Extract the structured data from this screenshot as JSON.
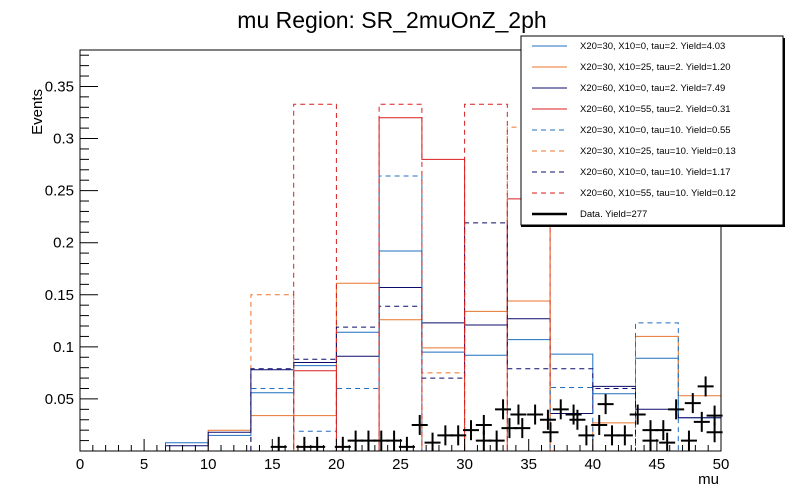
{
  "chart_data": {
    "type": "histogram",
    "title": "mu Region: SR_2muOnZ_2ph",
    "xlabel": "mu",
    "ylabel": "Events",
    "xlim": [
      0,
      50
    ],
    "ylim": [
      0,
      0.385
    ],
    "x_ticks": [
      0,
      5,
      10,
      15,
      20,
      25,
      30,
      35,
      40,
      45,
      50
    ],
    "y_ticks": [
      0.05,
      0.1,
      0.15,
      0.2,
      0.25,
      0.3,
      0.35
    ],
    "x_tick_labels": [
      "0",
      "5",
      "10",
      "15",
      "20",
      "25",
      "30",
      "35",
      "40",
      "45",
      "50"
    ],
    "y_tick_labels": [
      "0.05",
      "0.1",
      "0.15",
      "0.2",
      "0.25",
      "0.3",
      "0.35"
    ],
    "bin_edges": [
      0,
      3.333,
      6.667,
      10,
      13.333,
      16.667,
      20,
      23.333,
      26.667,
      30,
      33.333,
      36.667,
      40,
      43.333,
      46.667,
      50
    ],
    "series": [
      {
        "name": "X20=30, X10=0, tau=2. Yield=4.03",
        "color": "#1f6fbf",
        "style": "solid",
        "values": [
          0.0,
          0.0,
          0.008,
          0.015,
          0.056,
          0.082,
          0.114,
          0.192,
          0.095,
          0.092,
          0.107,
          0.093,
          0.055,
          0.089,
          0.032
        ]
      },
      {
        "name": "X20=30, X10=25, tau=2. Yield=1.20",
        "color": "#e8762b",
        "style": "solid",
        "values": [
          0.0,
          0.0,
          0.0,
          0.02,
          0.034,
          0.034,
          0.161,
          0.126,
          0.099,
          0.134,
          0.144,
          0.0,
          0.027,
          0.11,
          0.053
        ]
      },
      {
        "name": "X20=60, X10=0, tau=2. Yield=7.49",
        "color": "#0b0b6e",
        "style": "solid",
        "values": [
          0.0,
          0.0,
          0.005,
          0.018,
          0.078,
          0.085,
          0.091,
          0.157,
          0.123,
          0.121,
          0.127,
          0.036,
          0.062,
          0.04,
          0.032
        ]
      },
      {
        "name": "X20=60, X10=55, tau=2. Yield=0.31",
        "color": "#d91e1e",
        "style": "solid",
        "values": [
          0.0,
          0.0,
          0.0,
          0.0,
          0.0,
          0.077,
          0.0,
          0.32,
          0.28,
          0.0,
          0.242,
          0.0,
          0.0,
          0.0,
          0.0
        ]
      },
      {
        "name": "X20=30, X10=0, tau=10. Yield=0.55",
        "color": "#1f6fbf",
        "style": "dashed",
        "values": [
          0.0,
          0.0,
          0.0,
          0.0,
          0.06,
          0.019,
          0.06,
          0.264,
          0.0,
          0.0,
          0.0,
          0.061,
          0.0,
          0.123,
          0.0
        ]
      },
      {
        "name": "X20=30, X10=25, tau=10. Yield=0.13",
        "color": "#e8762b",
        "style": "dashed",
        "values": [
          0.0,
          0.0,
          0.0,
          0.0,
          0.15,
          0.0,
          0.0,
          0.0,
          0.075,
          0.0,
          0.311,
          0.0,
          0.0,
          0.0,
          0.0
        ]
      },
      {
        "name": "X20=60, X10=0, tau=10. Yield=1.17",
        "color": "#0b0b6e",
        "style": "dashed",
        "values": [
          0.0,
          0.0,
          0.0,
          0.0,
          0.079,
          0.088,
          0.119,
          0.139,
          0.07,
          0.219,
          0.079,
          0.079,
          0.06,
          0.0,
          0.0
        ]
      },
      {
        "name": "X20=60, X10=55, tau=10. Yield=0.12",
        "color": "#d91e1e",
        "style": "dashed",
        "values": [
          0.0,
          0.0,
          0.0,
          0.0,
          0.0,
          0.333,
          0.0,
          0.333,
          0.0,
          0.333,
          0.0,
          0.0,
          0.0,
          0.0,
          0.0
        ]
      }
    ],
    "data": {
      "name": "Data. Yield=277",
      "color": "#000000",
      "points": [
        {
          "x": 15.5,
          "y": 0.004
        },
        {
          "x": 17.5,
          "y": 0.004
        },
        {
          "x": 18.5,
          "y": 0.004
        },
        {
          "x": 20.5,
          "y": 0.004
        },
        {
          "x": 21.5,
          "y": 0.01
        },
        {
          "x": 22.5,
          "y": 0.01
        },
        {
          "x": 23.5,
          "y": 0.01
        },
        {
          "x": 24.5,
          "y": 0.01
        },
        {
          "x": 25.5,
          "y": 0.004
        },
        {
          "x": 26.5,
          "y": 0.025
        },
        {
          "x": 27.5,
          "y": 0.008
        },
        {
          "x": 28.5,
          "y": 0.015
        },
        {
          "x": 29.5,
          "y": 0.015
        },
        {
          "x": 30.5,
          "y": 0.02
        },
        {
          "x": 31.5,
          "y": 0.01
        },
        {
          "x": 32.5,
          "y": 0.01
        },
        {
          "x": 33.5,
          "y": 0.022
        },
        {
          "x": 34.5,
          "y": 0.022
        },
        {
          "x": 35.5,
          "y": 0.035
        },
        {
          "x": 36.5,
          "y": 0.03
        },
        {
          "x": 37.5,
          "y": 0.04
        },
        {
          "x": 38.5,
          "y": 0.035
        },
        {
          "x": 39.5,
          "y": 0.015
        },
        {
          "x": 40.5,
          "y": 0.025
        },
        {
          "x": 41.5,
          "y": 0.015
        },
        {
          "x": 42.5,
          "y": 0.015
        },
        {
          "x": 43.5,
          "y": 0.035
        },
        {
          "x": 44.5,
          "y": 0.02
        },
        {
          "x": 45.5,
          "y": 0.02
        },
        {
          "x": 46.5,
          "y": 0.04
        },
        {
          "x": 47.5,
          "y": 0.01
        },
        {
          "x": 48.5,
          "y": 0.028
        },
        {
          "x": 49.5,
          "y": 0.034
        }
      ],
      "extra_points": [
        {
          "x": 31.5,
          "y": 0.025
        },
        {
          "x": 33.0,
          "y": 0.04
        },
        {
          "x": 34.2,
          "y": 0.035
        },
        {
          "x": 36.7,
          "y": 0.018
        },
        {
          "x": 38.8,
          "y": 0.03
        },
        {
          "x": 41.0,
          "y": 0.045
        },
        {
          "x": 44.5,
          "y": 0.01
        },
        {
          "x": 45.8,
          "y": 0.008
        },
        {
          "x": 47.8,
          "y": 0.046
        },
        {
          "x": 48.8,
          "y": 0.062
        },
        {
          "x": 49.5,
          "y": 0.018
        }
      ]
    },
    "legend_position": "top-right"
  }
}
